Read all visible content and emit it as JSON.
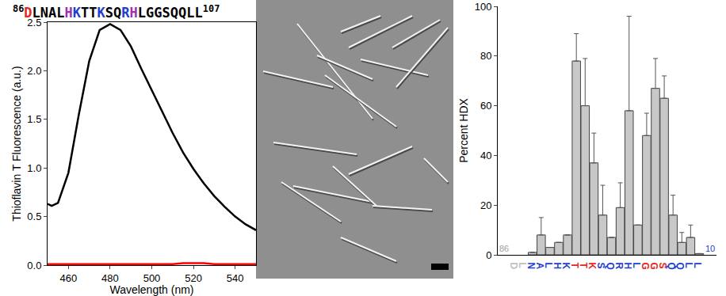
{
  "header": {
    "start": "86",
    "sequence": "DLNALHKTTKSQRHLGGSQQLL",
    "end": "107"
  },
  "chart_data": [
    {
      "type": "line",
      "x_label": "Wavelength (nm)",
      "y_label": "Thioflavin T Fluorescence (a.u.)",
      "x": [
        450,
        452,
        455,
        460,
        465,
        470,
        475,
        480,
        485,
        490,
        495,
        500,
        505,
        510,
        515,
        520,
        525,
        530,
        535,
        540,
        545,
        550
      ],
      "series": [
        {
          "color": "#000000",
          "values": [
            0.63,
            0.61,
            0.64,
            0.95,
            1.55,
            2.1,
            2.42,
            2.48,
            2.42,
            2.25,
            2.02,
            1.8,
            1.57,
            1.36,
            1.16,
            0.99,
            0.84,
            0.71,
            0.6,
            0.5,
            0.42,
            0.36
          ]
        },
        {
          "color": "#ff0000",
          "values": [
            0.01,
            0.01,
            0.01,
            0.01,
            0.01,
            0.01,
            0.01,
            0.01,
            0.01,
            0.01,
            0.01,
            0.01,
            0.01,
            0.01,
            0.02,
            0.02,
            0.02,
            0.01,
            0.01,
            0.01,
            0.01,
            0.01
          ]
        }
      ],
      "xlim": [
        450,
        550
      ],
      "xticks": [
        460,
        480,
        500,
        520,
        540
      ],
      "ylim": [
        0,
        2.5
      ],
      "yticks": [
        {
          "value": 0,
          "label": "0.0"
        },
        0.5,
        {
          "value": 1,
          "label": "1.0"
        },
        1.5,
        {
          "value": 2,
          "label": "2.0"
        },
        2.5
      ],
      "grid": false
    },
    {
      "type": "bar",
      "y_label": "Percent HDX",
      "categories": [
        "D",
        "L",
        "N",
        "A",
        "L",
        "H",
        "K",
        "T",
        "T",
        "K",
        "S",
        "Q",
        "R",
        "H",
        "L",
        "G",
        "G",
        "S",
        "Q",
        "Q",
        "L",
        "L"
      ],
      "values": [
        null,
        null,
        1,
        8,
        3,
        5,
        8,
        78,
        60,
        37,
        16,
        7,
        19,
        58,
        12,
        48,
        67,
        63,
        16,
        5,
        7,
        0.5
      ],
      "errors": [
        null,
        null,
        0,
        7,
        0,
        0,
        0,
        11,
        19,
        12,
        12,
        0,
        10,
        38,
        0,
        9,
        12,
        9,
        8,
        4,
        5,
        0
      ],
      "color": "#c8c8c8",
      "ylim": [
        0,
        100
      ],
      "yticks": [
        0,
        20,
        40,
        60,
        80,
        100
      ],
      "grid": false,
      "annotations": [
        "86",
        "10"
      ]
    }
  ]
}
